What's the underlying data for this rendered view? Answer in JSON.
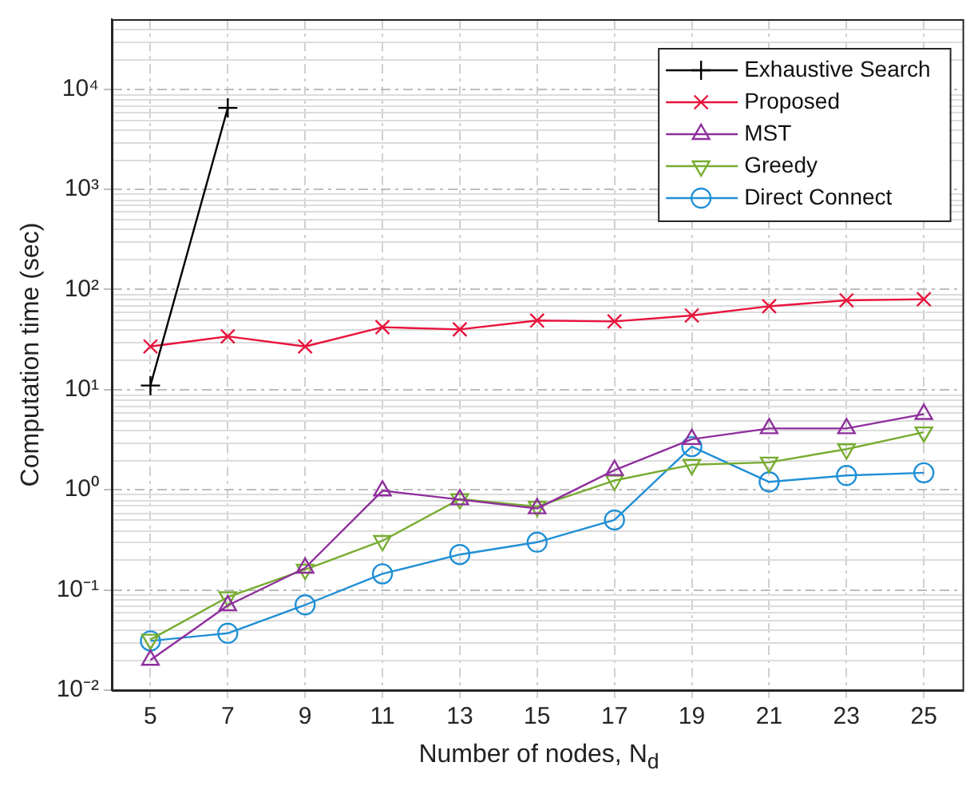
{
  "chart_data": {
    "type": "line",
    "xlabel": "Number of nodes, N$_{d}$",
    "ylabel": "Computation time (sec)",
    "log": "y",
    "grid": true,
    "legend": "top right",
    "line_style": "solid",
    "x": [
      5,
      7,
      9,
      11,
      13,
      15,
      17,
      19,
      21,
      23,
      25
    ],
    "xlim": [
      4,
      26
    ],
    "xticks": [
      5,
      7,
      9,
      11,
      13,
      15,
      17,
      19,
      21,
      23,
      25
    ],
    "ylim": [
      0.01,
      50000
    ],
    "yticks": [
      {
        "value": 0.01,
        "label": "10⁻²"
      },
      {
        "value": 0.1,
        "label": "10⁻¹"
      },
      {
        "value": 1,
        "label": "10⁰"
      },
      {
        "value": 10,
        "label": "10¹"
      },
      {
        "value": 100,
        "label": "10²"
      },
      {
        "value": 1000,
        "label": "10³"
      },
      {
        "value": 10000,
        "label": "10⁴"
      }
    ],
    "series": [
      {
        "name": "Exhaustive Search",
        "color": "#000000",
        "marker": "cross",
        "x": [
          5,
          7
        ],
        "values": [
          11,
          6500
        ]
      },
      {
        "name": "Proposed",
        "color": "#e8143c",
        "marker": "x",
        "values": [
          27,
          34,
          27,
          42,
          40,
          49,
          48,
          55,
          68,
          78,
          80
        ]
      },
      {
        "name": "MST",
        "color": "#8e2f9c",
        "marker": "triangle",
        "values": [
          0.02,
          0.07,
          0.166,
          0.98,
          0.8,
          0.65,
          1.57,
          3.2,
          4.1,
          4.1,
          5.7
        ]
      },
      {
        "name": "Greedy",
        "color": "#77ac30",
        "marker": "triangle_down",
        "values": [
          0.032,
          0.085,
          0.16,
          0.31,
          0.81,
          0.68,
          1.24,
          1.78,
          1.88,
          2.55,
          3.76
        ]
      },
      {
        "name": "Direct Connect",
        "color": "#1f8fd6",
        "marker": "circle",
        "values": [
          0.031,
          0.037,
          0.071,
          0.145,
          0.226,
          0.3,
          0.5,
          2.7,
          1.2,
          1.39,
          1.48
        ]
      }
    ]
  }
}
